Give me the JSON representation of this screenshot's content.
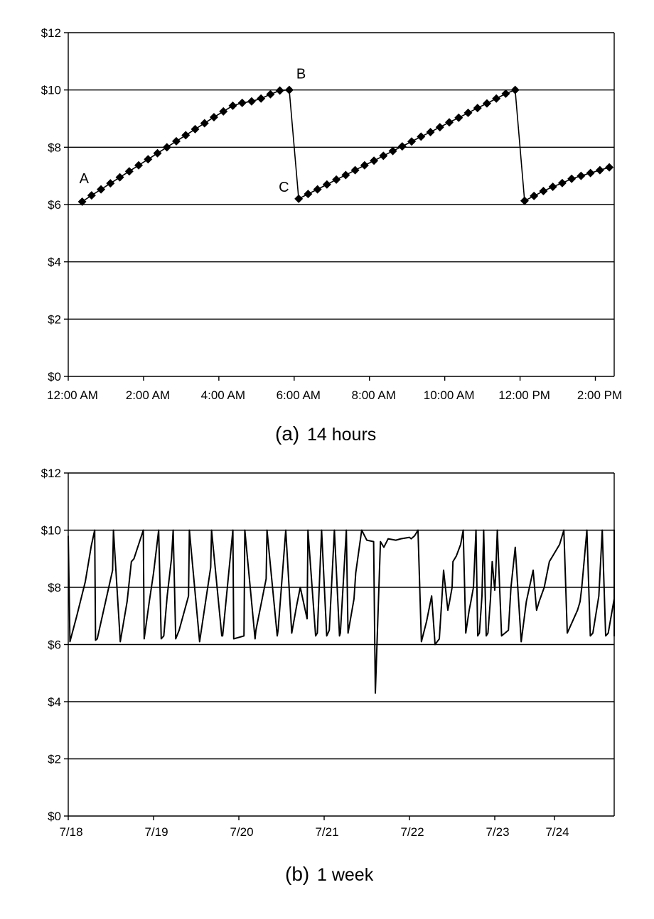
{
  "chart_data": [
    {
      "type": "line",
      "caption_letter": "(a)",
      "caption_text": "14 hours",
      "title": "",
      "xlabel": "",
      "ylabel": "",
      "ylim": [
        0,
        12
      ],
      "xlim": [
        0,
        14.5
      ],
      "grid": true,
      "y_ticks": [
        0,
        2,
        4,
        6,
        8,
        10,
        12
      ],
      "y_tick_labels": [
        "$0",
        "$2",
        "$4",
        "$6",
        "$8",
        "$10",
        "$12"
      ],
      "x_ticks": [
        0,
        2,
        4,
        6,
        8,
        10,
        12,
        14
      ],
      "x_tick_labels": [
        "12:00 AM",
        "2:00 AM",
        "4:00 AM",
        "6:00 AM",
        "8:00 AM",
        "10:00 AM",
        "12:00 PM",
        "2:00 PM"
      ],
      "marker": "diamond",
      "series": [
        {
          "x": [
            0.37,
            0.62,
            0.87,
            1.12,
            1.37,
            1.62,
            1.87,
            2.12,
            2.37,
            2.62,
            2.87,
            3.12,
            3.37,
            3.62,
            3.87,
            4.12,
            4.37,
            4.62,
            4.87,
            5.12,
            5.37,
            5.62,
            5.87,
            6.12,
            6.37,
            6.62,
            6.87,
            7.12,
            7.37,
            7.62,
            7.87,
            8.12,
            8.37,
            8.62,
            8.87,
            9.12,
            9.37,
            9.62,
            9.87,
            10.12,
            10.37,
            10.62,
            10.87,
            11.12,
            11.37,
            11.62,
            11.87,
            12.12,
            12.37,
            12.62,
            12.87,
            13.12,
            13.37,
            13.62,
            13.87,
            14.12,
            14.37
          ],
          "y": [
            6.1,
            6.32,
            6.53,
            6.74,
            6.95,
            7.16,
            7.37,
            7.58,
            7.79,
            8.0,
            8.21,
            8.42,
            8.63,
            8.84,
            9.05,
            9.25,
            9.45,
            9.55,
            9.6,
            9.7,
            9.85,
            9.98,
            10.0,
            6.2,
            6.37,
            6.53,
            6.7,
            6.87,
            7.03,
            7.2,
            7.37,
            7.53,
            7.7,
            7.87,
            8.03,
            8.2,
            8.37,
            8.53,
            8.7,
            8.87,
            9.03,
            9.2,
            9.37,
            9.53,
            9.7,
            9.87,
            10.0,
            6.13,
            6.3,
            6.47,
            6.62,
            6.75,
            6.9,
            7.0,
            7.1,
            7.2,
            7.3
          ]
        }
      ],
      "annotations": [
        {
          "label": "A",
          "x": 0.37,
          "y": 6.1
        },
        {
          "label": "B",
          "x": 5.87,
          "y": 10.0
        },
        {
          "label": "C",
          "x": 6.12,
          "y": 6.2
        }
      ]
    },
    {
      "type": "line",
      "caption_letter": "(b)",
      "caption_text": "1 week",
      "title": "",
      "xlabel": "",
      "ylabel": "",
      "ylim": [
        0,
        12
      ],
      "xlim": [
        "7/18",
        "7/24"
      ],
      "grid": true,
      "y_ticks": [
        0,
        2,
        4,
        6,
        8,
        10,
        12
      ],
      "y_tick_labels": [
        "$0",
        "$2",
        "$4",
        "$6",
        "$8",
        "$10",
        "$12"
      ],
      "x_tick_labels": [
        "7/18",
        "7/19",
        "7/20",
        "7/21",
        "7/22",
        "7/23",
        "7/24"
      ],
      "x_tick_days": [
        0,
        1,
        2,
        3,
        4,
        5,
        6
      ],
      "x_tick_positions_note": "",
      "marker": "none",
      "series": [
        {
          "day": [
            0.0,
            0.02,
            0.1,
            0.2,
            0.27,
            0.31,
            0.32,
            0.34,
            0.43,
            0.52,
            0.53,
            0.61,
            0.69,
            0.74,
            0.77,
            0.88,
            0.89,
            0.95,
            1.0,
            1.06,
            1.09,
            1.12,
            1.16,
            1.21,
            1.23,
            1.26,
            1.3,
            1.41,
            1.42,
            1.54,
            1.55,
            1.67,
            1.68,
            1.8,
            1.81,
            1.93,
            1.94,
            2.06,
            2.07,
            2.19,
            2.2,
            2.32,
            2.33,
            2.45,
            2.46,
            2.55,
            2.62,
            2.68,
            2.72,
            2.8,
            2.81,
            2.9,
            2.92,
            2.97,
            3.03,
            3.06,
            3.12,
            3.18,
            3.19,
            3.26,
            3.28,
            3.35,
            3.37,
            3.44,
            3.5,
            3.58,
            3.6,
            3.66,
            3.7,
            3.75,
            3.84,
            3.9,
            4.0,
            4.02,
            4.06,
            4.1,
            4.14,
            4.2,
            4.26,
            4.3,
            4.35,
            4.38,
            4.4,
            4.45,
            4.47,
            4.5,
            4.51,
            4.55,
            4.6,
            4.63,
            4.66,
            4.7,
            4.72,
            4.75,
            4.78,
            4.8,
            4.82,
            4.85,
            4.87,
            4.9,
            4.92,
            4.95,
            4.97,
            5.0,
            5.01,
            5.03,
            5.08,
            5.16,
            5.19,
            5.24,
            5.31,
            5.37,
            5.45,
            5.49,
            5.52,
            5.58,
            5.64,
            5.68,
            5.76,
            5.81,
            5.85,
            5.97,
            6.0,
            6.02,
            6.08,
            6.12,
            6.15,
            6.22,
            6.26,
            6.3,
            6.33,
            6.43,
            6.45,
            6.55,
            6.58,
            6.64,
            6.66,
            6.71,
            6.76,
            6.79,
            6.83
          ],
          "y": [
            9.8,
            6.1,
            7.0,
            8.2,
            9.45,
            10.0,
            6.15,
            6.2,
            7.4,
            8.6,
            10.0,
            6.1,
            7.5,
            8.9,
            9.0,
            10.0,
            6.2,
            7.5,
            8.5,
            10.0,
            6.2,
            6.3,
            7.7,
            9.0,
            10.0,
            6.2,
            6.5,
            7.7,
            10.0,
            6.1,
            6.3,
            8.7,
            10.0,
            6.3,
            6.3,
            10.0,
            6.2,
            6.3,
            10.0,
            6.2,
            6.5,
            8.3,
            10.0,
            6.3,
            6.5,
            10.0,
            6.4,
            7.4,
            8.0,
            6.9,
            10.0,
            6.3,
            6.4,
            10.0,
            6.3,
            6.5,
            10.0,
            6.3,
            6.4,
            10.0,
            6.4,
            7.6,
            8.5,
            10.0,
            9.65,
            9.6,
            4.3,
            9.6,
            9.4,
            9.7,
            9.65,
            9.7,
            9.75,
            9.7,
            9.8,
            10.0,
            6.1,
            6.8,
            7.7,
            6.0,
            6.2,
            7.6,
            8.6,
            7.2,
            7.5,
            8.0,
            8.9,
            9.1,
            9.5,
            10.0,
            6.4,
            7.2,
            7.5,
            8.0,
            10.0,
            6.3,
            6.4,
            7.7,
            10.0,
            6.3,
            6.4,
            7.6,
            8.9,
            7.9,
            8.4,
            10.0,
            6.3,
            6.5,
            8.0,
            9.4,
            6.1,
            7.5,
            8.6,
            7.2,
            7.5,
            8.0,
            8.9,
            9.1,
            9.5,
            10.0,
            6.4,
            7.2,
            7.5,
            8.0,
            10.0,
            6.3,
            6.4,
            7.7,
            10.0,
            6.3,
            6.4,
            7.6,
            8.9,
            7.9,
            8.4,
            10.0,
            6.3,
            6.5,
            8.0,
            9.4
          ]
        }
      ]
    }
  ]
}
